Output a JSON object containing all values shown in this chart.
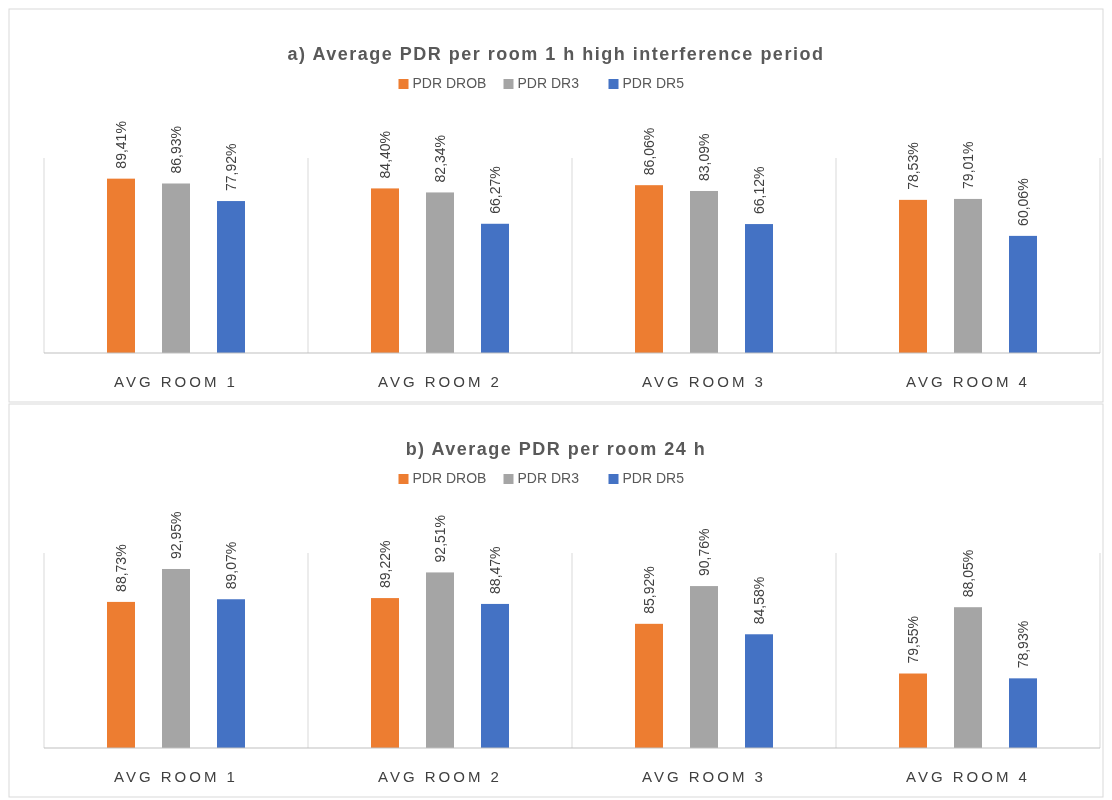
{
  "chart_data": [
    {
      "type": "bar",
      "title": "a) Average PDR per room 1 h high interference period",
      "categories": [
        "AVG ROOM 1",
        "AVG ROOM 2",
        "AVG ROOM 3",
        "AVG ROOM 4"
      ],
      "ylim": [
        0,
        100
      ],
      "tick_labels": "x",
      "legend": "top",
      "grid": false,
      "series": [
        {
          "name": "PDR DROB",
          "color": "#ed7d31",
          "values": [
            89.41,
            84.4,
            86.06,
            78.53
          ],
          "value_labels": [
            "89,41%",
            "84,40%",
            "86,06%",
            "78,53%"
          ]
        },
        {
          "name": "PDR DR3",
          "color": "#a5a5a5",
          "values": [
            86.93,
            82.34,
            83.09,
            79.01
          ],
          "value_labels": [
            "86,93%",
            "82,34%",
            "83,09%",
            "79,01%"
          ]
        },
        {
          "name": "PDR DR5",
          "color": "#4472c4",
          "values": [
            77.92,
            66.27,
            66.12,
            60.06
          ],
          "value_labels": [
            "77,92%",
            "66,27%",
            "66,12%",
            "60,06%"
          ]
        }
      ]
    },
    {
      "type": "bar",
      "title": "b) Average PDR per room 24 h",
      "categories": [
        "AVG ROOM 1",
        "AVG ROOM 2",
        "AVG ROOM 3",
        "AVG ROOM 4"
      ],
      "ylim": [
        70,
        95
      ],
      "tick_labels": "x",
      "legend": "top",
      "grid": false,
      "series": [
        {
          "name": "PDR DROB",
          "color": "#ed7d31",
          "values": [
            88.73,
            89.22,
            85.92,
            79.55
          ],
          "value_labels": [
            "88,73%",
            "89,22%",
            "85,92%",
            "79,55%"
          ]
        },
        {
          "name": "PDR DR3",
          "color": "#a5a5a5",
          "values": [
            92.95,
            92.51,
            90.76,
            88.05
          ],
          "value_labels": [
            "92,95%",
            "92,51%",
            "90,76%",
            "88,05%"
          ]
        },
        {
          "name": "PDR DR5",
          "color": "#4472c4",
          "values": [
            89.07,
            88.47,
            84.58,
            78.93
          ],
          "value_labels": [
            "89,07%",
            "88,47%",
            "84,58%",
            "78,93%"
          ]
        }
      ]
    }
  ]
}
